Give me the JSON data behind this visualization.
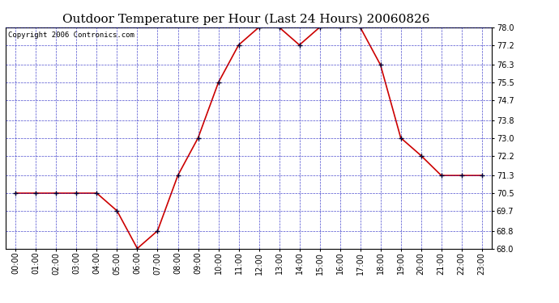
{
  "title": "Outdoor Temperature per Hour (Last 24 Hours) 20060826",
  "copyright_text": "Copyright 2006 Contronics.com",
  "hours": [
    "00:00",
    "01:00",
    "02:00",
    "03:00",
    "04:00",
    "05:00",
    "06:00",
    "07:00",
    "08:00",
    "09:00",
    "10:00",
    "11:00",
    "12:00",
    "13:00",
    "14:00",
    "15:00",
    "16:00",
    "17:00",
    "18:00",
    "19:00",
    "20:00",
    "21:00",
    "22:00",
    "23:00"
  ],
  "temps": [
    70.5,
    70.5,
    70.5,
    70.5,
    70.5,
    69.7,
    68.0,
    68.8,
    71.3,
    73.0,
    75.5,
    77.2,
    78.0,
    78.0,
    77.2,
    78.0,
    78.0,
    78.0,
    76.3,
    73.0,
    72.2,
    71.3,
    71.3,
    71.3
  ],
  "ylim": [
    68.0,
    78.0
  ],
  "yticks": [
    68.0,
    68.8,
    69.7,
    70.5,
    71.3,
    72.2,
    73.0,
    73.8,
    74.7,
    75.5,
    76.3,
    77.2,
    78.0
  ],
  "line_color": "#cc0000",
  "marker_color": "#000000",
  "bg_color": "#ffffff",
  "plot_bg_color": "#ffffff",
  "grid_color": "#0000bb",
  "title_fontsize": 11,
  "tick_fontsize": 7,
  "copyright_fontsize": 6.5
}
